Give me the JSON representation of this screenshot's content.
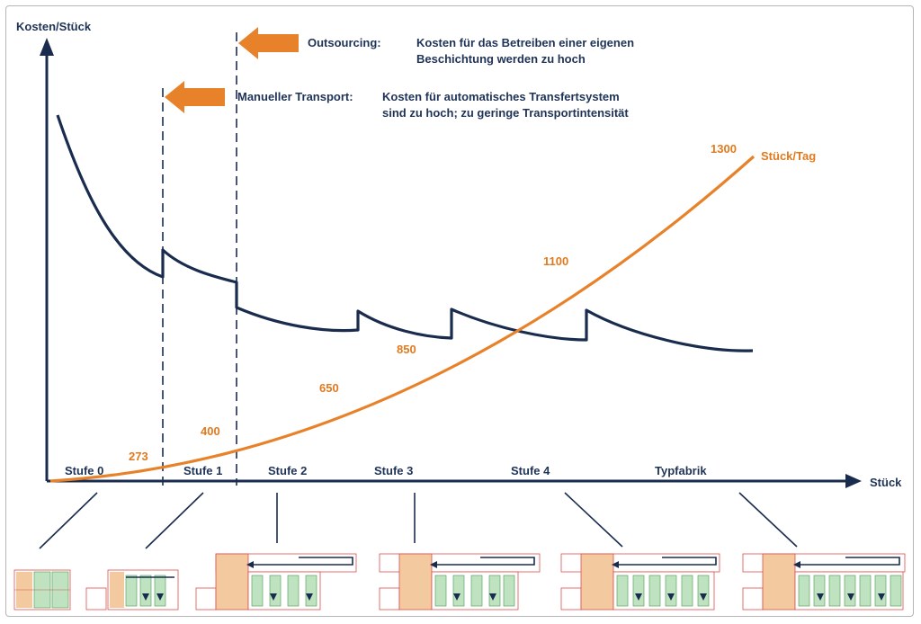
{
  "chart_data": {
    "type": "line",
    "y_axis_label": "Kosten/Stück",
    "x_axis_label": "Stück",
    "stages": [
      "Stufe 0",
      "Stufe 1",
      "Stufe 2",
      "Stufe 3",
      "Stufe 4",
      "Typfabrik"
    ],
    "orange_series": {
      "name": "Stück/Tag",
      "labels": [
        "273",
        "400",
        "650",
        "850",
        "1100",
        "1300"
      ]
    },
    "annotations": [
      {
        "title": "Outsourcing:",
        "line1": "Kosten für das Betreiben einer eigenen",
        "line2": "Beschichtung werden zu hoch"
      },
      {
        "title": "Manueller Transport:",
        "line1": "Kosten für automatisches Transfertsystem",
        "line2": "sind zu hoch; zu geringe Transportintensität"
      }
    ],
    "colors": {
      "cost_curve": "#1a2c4e",
      "volume_curve": "#e8822a",
      "arrow": "#e8822a",
      "axis": "#1a2c4e"
    }
  }
}
